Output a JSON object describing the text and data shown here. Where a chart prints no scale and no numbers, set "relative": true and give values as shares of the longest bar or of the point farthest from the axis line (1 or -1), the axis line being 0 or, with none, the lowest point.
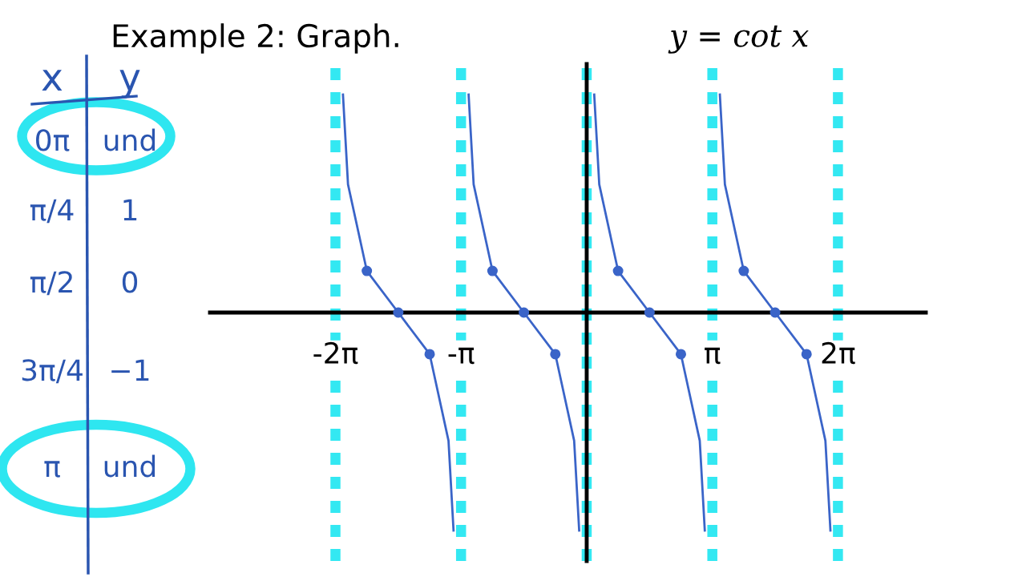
{
  "chart_data": {
    "type": "line",
    "title": "Example 2: Graph.",
    "subtitle": "y = cot x",
    "relative": true,
    "annotations": [
      "x",
      "y",
      "0π",
      "und",
      "π/4",
      "1",
      "π/2",
      "0",
      "3π/4",
      "−1",
      "π",
      "und"
    ],
    "series": [
      {
        "color": "#3a64c8",
        "x": [
          -6.095,
          -5.969,
          -5.498,
          -4.712,
          -3.927,
          -3.456,
          -3.33
        ],
        "values": [
          1,
          0.588,
          0.191,
          0,
          -0.191,
          -0.588,
          -1
        ]
      },
      {
        "color": "#3a64c8",
        "x": [
          -2.953,
          -2.827,
          -2.356,
          -1.571,
          -0.785,
          -0.314,
          -0.188
        ],
        "values": [
          1,
          0.588,
          0.191,
          0,
          -0.191,
          -0.588,
          -1
        ]
      },
      {
        "color": "#3a64c8",
        "x": [
          0.188,
          0.314,
          0.785,
          1.571,
          2.356,
          2.827,
          2.953
        ],
        "values": [
          1,
          0.588,
          0.191,
          0,
          -0.191,
          -0.588,
          -1
        ]
      },
      {
        "color": "#3a64c8",
        "x": [
          3.33,
          3.456,
          3.927,
          4.712,
          5.498,
          5.969,
          6.095
        ],
        "values": [
          1,
          0.588,
          0.191,
          0,
          -0.191,
          -0.588,
          -1
        ]
      },
      {
        "type": "scatter",
        "marker": "circle",
        "color": "#3a64c8",
        "x": [
          -5.498,
          -4.712,
          -3.927,
          -2.356,
          -1.571,
          -0.785,
          0.785,
          1.571,
          2.356,
          3.927,
          4.712,
          5.498
        ],
        "values": [
          0.191,
          0,
          -0.191,
          0.191,
          0,
          -0.191,
          0.191,
          0,
          -0.191,
          0.191,
          0,
          -0.191
        ]
      }
    ],
    "ref_lines": [
      {
        "axis": "x",
        "value": -6.283,
        "color": "#33e8f2",
        "line_style": "dashed"
      },
      {
        "axis": "x",
        "value": -3.142,
        "color": "#33e8f2",
        "line_style": "dashed"
      },
      {
        "axis": "x",
        "value": 0,
        "color": "#33e8f2",
        "line_style": "dashed"
      },
      {
        "axis": "x",
        "value": 3.142,
        "color": "#33e8f2",
        "line_style": "dashed"
      },
      {
        "axis": "x",
        "value": 6.283,
        "color": "#33e8f2",
        "line_style": "dashed"
      }
    ],
    "xlim": [
      -9.42,
      8.48
    ],
    "xticks": [
      {
        "value": -6.283,
        "label": "-2π"
      },
      {
        "value": -3.142,
        "label": "-π"
      },
      {
        "value": 3.142,
        "label": "π"
      },
      {
        "value": 6.283,
        "label": "2π"
      }
    ],
    "tick_labels": "x",
    "grid": false,
    "marker": "none",
    "line_style": "solid"
  }
}
